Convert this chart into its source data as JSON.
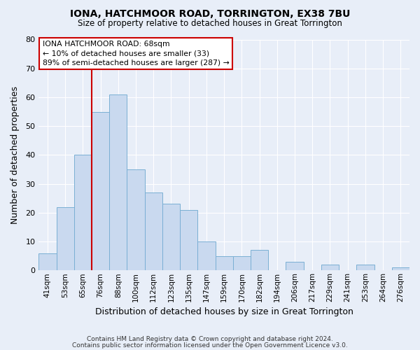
{
  "title": "IONA, HATCHMOOR ROAD, TORRINGTON, EX38 7BU",
  "subtitle": "Size of property relative to detached houses in Great Torrington",
  "xlabel": "Distribution of detached houses by size in Great Torrington",
  "ylabel": "Number of detached properties",
  "footer_line1": "Contains HM Land Registry data © Crown copyright and database right 2024.",
  "footer_line2": "Contains public sector information licensed under the Open Government Licence v3.0.",
  "bar_labels": [
    "41sqm",
    "53sqm",
    "65sqm",
    "76sqm",
    "88sqm",
    "100sqm",
    "112sqm",
    "123sqm",
    "135sqm",
    "147sqm",
    "159sqm",
    "170sqm",
    "182sqm",
    "194sqm",
    "206sqm",
    "217sqm",
    "229sqm",
    "241sqm",
    "253sqm",
    "264sqm",
    "276sqm"
  ],
  "bar_values": [
    6,
    22,
    40,
    55,
    61,
    35,
    27,
    23,
    21,
    10,
    5,
    5,
    7,
    0,
    3,
    0,
    2,
    0,
    2,
    0,
    1
  ],
  "bar_color": "#c9d9ef",
  "bar_edge_color": "#7aafd4",
  "ylim": [
    0,
    80
  ],
  "yticks": [
    0,
    10,
    20,
    30,
    40,
    50,
    60,
    70,
    80
  ],
  "vline_color": "#cc0000",
  "annotation_title": "IONA HATCHMOOR ROAD: 68sqm",
  "annotation_line1": "← 10% of detached houses are smaller (33)",
  "annotation_line2": "89% of semi-detached houses are larger (287) →",
  "annotation_box_color": "#ffffff",
  "annotation_box_edge": "#cc0000",
  "background_color": "#e8eef8",
  "grid_color": "#ffffff",
  "title_fontsize": 10,
  "subtitle_fontsize": 8.5
}
